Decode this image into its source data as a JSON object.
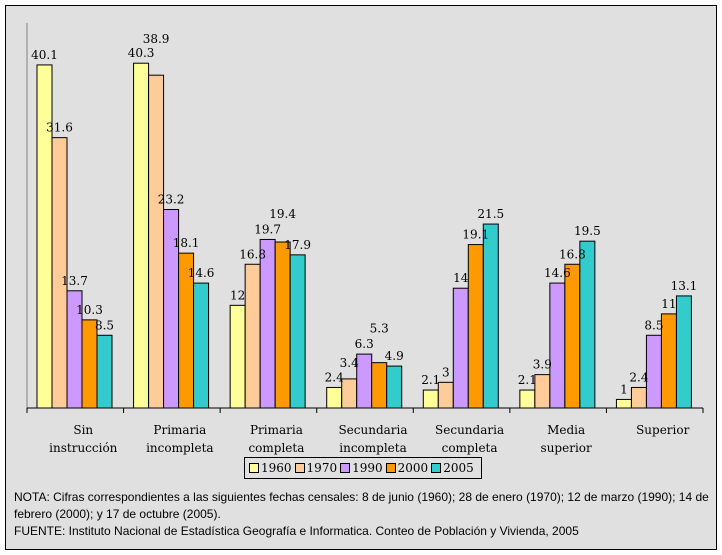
{
  "chart_data": {
    "type": "bar",
    "categories": [
      [
        "Sin",
        "instrucción"
      ],
      [
        "Primaria",
        "incompleta"
      ],
      [
        "Primaria",
        "completa"
      ],
      [
        "Secundaria",
        "incompleta"
      ],
      [
        "Secundaria",
        "completa"
      ],
      [
        "Media",
        "superior"
      ],
      [
        "Superior"
      ]
    ],
    "series": [
      {
        "name": "1960",
        "color": "#ffff99",
        "values": [
          40.1,
          40.3,
          12,
          2.4,
          2.1,
          2.1,
          1
        ]
      },
      {
        "name": "1970",
        "color": "#ffcc99",
        "values": [
          31.6,
          38.9,
          16.8,
          3.4,
          3,
          3.9,
          2.4
        ]
      },
      {
        "name": "1990",
        "color": "#cc99ff",
        "values": [
          13.7,
          23.2,
          19.7,
          6.3,
          14,
          14.6,
          8.5
        ]
      },
      {
        "name": "2000",
        "color": "#ff9900",
        "values": [
          10.3,
          18.1,
          19.4,
          5.3,
          19.1,
          16.8,
          11
        ]
      },
      {
        "name": "2005",
        "color": "#33cccc",
        "values": [
          8.5,
          14.6,
          17.9,
          4.9,
          21.5,
          19.5,
          13.1
        ]
      }
    ],
    "ylim": [
      0,
      45
    ],
    "grid": false,
    "legend": "bottom",
    "data_labels": true
  },
  "notes": {
    "nota": "NOTA: Cifras correspondientes a las siguientes fechas censales: 8 de junio (1960); 28 de enero (1970); 12 de marzo (1990); 14 de febrero (2000); y 17 de octubre (2005).",
    "fuente": "FUENTE:  Instituto Nacional de Estadística Geografía e Informatica. Conteo de Población y Vivienda, 2005"
  }
}
